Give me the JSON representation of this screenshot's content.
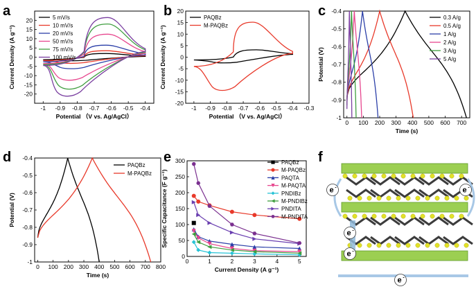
{
  "panels": {
    "a": "a",
    "b": "b",
    "c": "c",
    "d": "d",
    "e": "e",
    "f": "f"
  },
  "structure": {
    "electron_label": "e",
    "electron_superscript": "-"
  },
  "chart_data": [
    {
      "panel": "a",
      "type": "line",
      "xlabel": "Potential （V vs. Ag/AgCl）",
      "ylabel": "Current Density (A g⁻¹)",
      "xlim": [
        -1.05,
        -0.35
      ],
      "ylim": [
        -25,
        25
      ],
      "xticks": [
        -1.0,
        -0.9,
        -0.8,
        -0.7,
        -0.6,
        -0.5,
        -0.4
      ],
      "yticks": [
        -20,
        -15,
        -10,
        -5,
        0,
        5,
        10,
        15,
        20
      ],
      "legend_position": "top-left",
      "series": [
        {
          "name": "5 mV/s",
          "color": "#000000",
          "cv": {
            "upper_peak": [
              -0.63,
              2.0
            ],
            "lower_peak": [
              -0.83,
              -2.0
            ],
            "left": [
              -1.0,
              -0.8,
              -1.4
            ],
            "right": [
              -0.4,
              0.6,
              0.4
            ]
          }
        },
        {
          "name": "10 mV/s",
          "color": "#e8392a",
          "cv": {
            "upper_peak": [
              -0.63,
              3.5
            ],
            "lower_peak": [
              -0.84,
              -3.5
            ],
            "left": [
              -1.0,
              -1.0,
              -1.8
            ],
            "right": [
              -0.4,
              1.0,
              0.8
            ]
          }
        },
        {
          "name": "20 mV/s",
          "color": "#2b3fa8",
          "cv": {
            "upper_peak": [
              -0.63,
              6.5
            ],
            "lower_peak": [
              -0.84,
              -6.5
            ],
            "left": [
              -1.0,
              -1.5,
              -2.5
            ],
            "right": [
              -0.4,
              1.8,
              1.2
            ]
          }
        },
        {
          "name": "50 mV/s",
          "color": "#e7468e",
          "cv": {
            "upper_peak": [
              -0.62,
              12.5
            ],
            "lower_peak": [
              -0.85,
              -13.0
            ],
            "left": [
              -1.0,
              -2.0,
              -3.5
            ],
            "right": [
              -0.4,
              3.0,
              2.0
            ]
          }
        },
        {
          "name": "75 mV/s",
          "color": "#3f9e3f",
          "cv": {
            "upper_peak": [
              -0.62,
              18.0
            ],
            "lower_peak": [
              -0.85,
              -18.0
            ],
            "left": [
              -1.0,
              -2.5,
              -4.0
            ],
            "right": [
              -0.4,
              4.0,
              2.6
            ]
          }
        },
        {
          "name": "100 mV/s",
          "color": "#7a3fa0",
          "cv": {
            "upper_peak": [
              -0.62,
              21.5
            ],
            "lower_peak": [
              -0.86,
              -22.0
            ],
            "left": [
              -1.0,
              -3.0,
              -4.5
            ],
            "right": [
              -0.4,
              4.6,
              3.0
            ]
          }
        }
      ]
    },
    {
      "panel": "b",
      "type": "line",
      "xlabel": "Potential （V vs. Ag/AgCl）",
      "ylabel": "Current Density (A g⁻¹)",
      "xlim": [
        -1.05,
        -0.3
      ],
      "ylim": [
        -20,
        20
      ],
      "xticks": [
        -1.0,
        -0.9,
        -0.8,
        -0.7,
        -0.6,
        -0.5,
        -0.4,
        -0.3
      ],
      "yticks": [
        -20,
        -15,
        -10,
        -5,
        0,
        5,
        10,
        15,
        20
      ],
      "legend_position": "top-left",
      "series": [
        {
          "name": "PAQBz",
          "color": "#000000",
          "cv": {
            "upper_peak": [
              -0.62,
              3.2
            ],
            "lower_peak": [
              -0.82,
              -2.6
            ],
            "left": [
              -1.0,
              -1.0,
              -1.2
            ],
            "right": [
              -0.4,
              1.5,
              1.2
            ]
          }
        },
        {
          "name": "M-PAQBz",
          "color": "#e8392a",
          "cv": {
            "upper_peak": [
              -0.64,
              15.2
            ],
            "lower_peak": [
              -0.83,
              -15.0
            ],
            "left": [
              -1.0,
              -2.0,
              -4.0
            ],
            "right": [
              -0.4,
              2.5,
              1.6
            ]
          }
        }
      ]
    },
    {
      "panel": "c",
      "type": "line",
      "xlabel": "Time (s)",
      "ylabel": "Potential (V)",
      "xlim": [
        -20,
        750
      ],
      "ylim": [
        -1.0,
        -0.4
      ],
      "xticks": [
        0,
        100,
        200,
        300,
        400,
        500,
        600,
        700
      ],
      "yticks": [
        -1.0,
        -0.9,
        -0.8,
        -0.7,
        -0.6,
        -0.5,
        -0.4
      ],
      "legend_position": "top-right",
      "series": [
        {
          "name": "0.3 A/g",
          "color": "#000000",
          "gcd": {
            "t_peak": 355,
            "t_end": 730,
            "v_start": -0.88
          }
        },
        {
          "name": "0.5 A/g",
          "color": "#e8392a",
          "gcd": {
            "t_peak": 200,
            "t_end": 405,
            "v_start": -0.89
          }
        },
        {
          "name": "1 A/g",
          "color": "#2b3fa8",
          "gcd": {
            "t_peak": 95,
            "t_end": 190,
            "v_start": -0.9
          }
        },
        {
          "name": "2 A/g",
          "color": "#e7468e",
          "gcd": {
            "t_peak": 45,
            "t_end": 90,
            "v_start": -0.92
          }
        },
        {
          "name": "3 A/g",
          "color": "#3f9e3f",
          "gcd": {
            "t_peak": 28,
            "t_end": 56,
            "v_start": -0.93
          }
        },
        {
          "name": "5 A/g",
          "color": "#7a3fa0",
          "gcd": {
            "t_peak": 15,
            "t_end": 30,
            "v_start": -0.95
          }
        }
      ]
    },
    {
      "panel": "d",
      "type": "line",
      "xlabel": "Time (s)",
      "ylabel": "Potential (V)",
      "xlim": [
        -20,
        800
      ],
      "ylim": [
        -1.0,
        -0.4
      ],
      "xticks": [
        0,
        100,
        200,
        300,
        400,
        500,
        600,
        700,
        800
      ],
      "yticks": [
        -1.0,
        -0.9,
        -0.8,
        -0.7,
        -0.6,
        -0.5,
        -0.4
      ],
      "legend_position": "top-right",
      "series": [
        {
          "name": "PAQBz",
          "color": "#000000",
          "gcd": {
            "t_peak": 195,
            "t_end": 400,
            "v_start": -0.86
          }
        },
        {
          "name": "M-PAQBz",
          "color": "#e8392a",
          "gcd": {
            "t_peak": 355,
            "t_end": 735,
            "v_start": -0.86
          }
        }
      ]
    },
    {
      "panel": "e",
      "type": "line",
      "xlabel": "Current Density (A g⁻¹)",
      "ylabel": "Specific Capacitance (F g⁻¹)",
      "xlim": [
        0,
        5.3
      ],
      "ylim": [
        0,
        300
      ],
      "xticks": [
        0,
        1,
        2,
        3,
        4,
        5
      ],
      "yticks": [
        0,
        50,
        100,
        150,
        200,
        250,
        300
      ],
      "legend_position": "top-right",
      "series": [
        {
          "name": "PAQBz",
          "color": "#000000",
          "marker": "square",
          "x": [
            0.3
          ],
          "y": [
            105
          ]
        },
        {
          "name": "M-PAQBz",
          "color": "#e8392a",
          "marker": "circle",
          "x": [
            0.3,
            0.5,
            1,
            2,
            3,
            5
          ],
          "y": [
            190,
            172,
            160,
            140,
            130,
            118
          ]
        },
        {
          "name": "PAQTA",
          "color": "#2b3fa8",
          "marker": "triangle-up",
          "x": [
            0.3,
            0.5,
            1,
            2,
            3,
            5
          ],
          "y": [
            85,
            62,
            48,
            38,
            30,
            25
          ]
        },
        {
          "name": "M-PAQTA",
          "color": "#e7468e",
          "marker": "triangle-down",
          "x": [
            0.3,
            0.5,
            1,
            2,
            3,
            5
          ],
          "y": [
            80,
            58,
            40,
            25,
            18,
            15
          ]
        },
        {
          "name": "PNDIBz",
          "color": "#27c3d6",
          "marker": "diamond",
          "x": [
            0.3,
            0.5,
            1,
            2,
            3,
            5
          ],
          "y": [
            45,
            20,
            12,
            10,
            8,
            5
          ]
        },
        {
          "name": "M-PNDIBz",
          "color": "#3f9e3f",
          "marker": "triangle-left",
          "x": [
            0.3,
            0.5,
            1,
            2,
            3,
            5
          ],
          "y": [
            70,
            45,
            30,
            20,
            15,
            10
          ]
        },
        {
          "name": "PNDITA",
          "color": "#6a3fb0",
          "marker": "triangle-right",
          "x": [
            0.3,
            0.5,
            1,
            2,
            3,
            5
          ],
          "y": [
            170,
            130,
            105,
            75,
            55,
            40
          ]
        },
        {
          "name": "M-PNDITA",
          "color": "#7a2f8f",
          "marker": "hexagon",
          "x": [
            0.3,
            0.5,
            1,
            2,
            3,
            5
          ],
          "y": [
            290,
            230,
            158,
            100,
            72,
            42
          ]
        }
      ]
    }
  ]
}
